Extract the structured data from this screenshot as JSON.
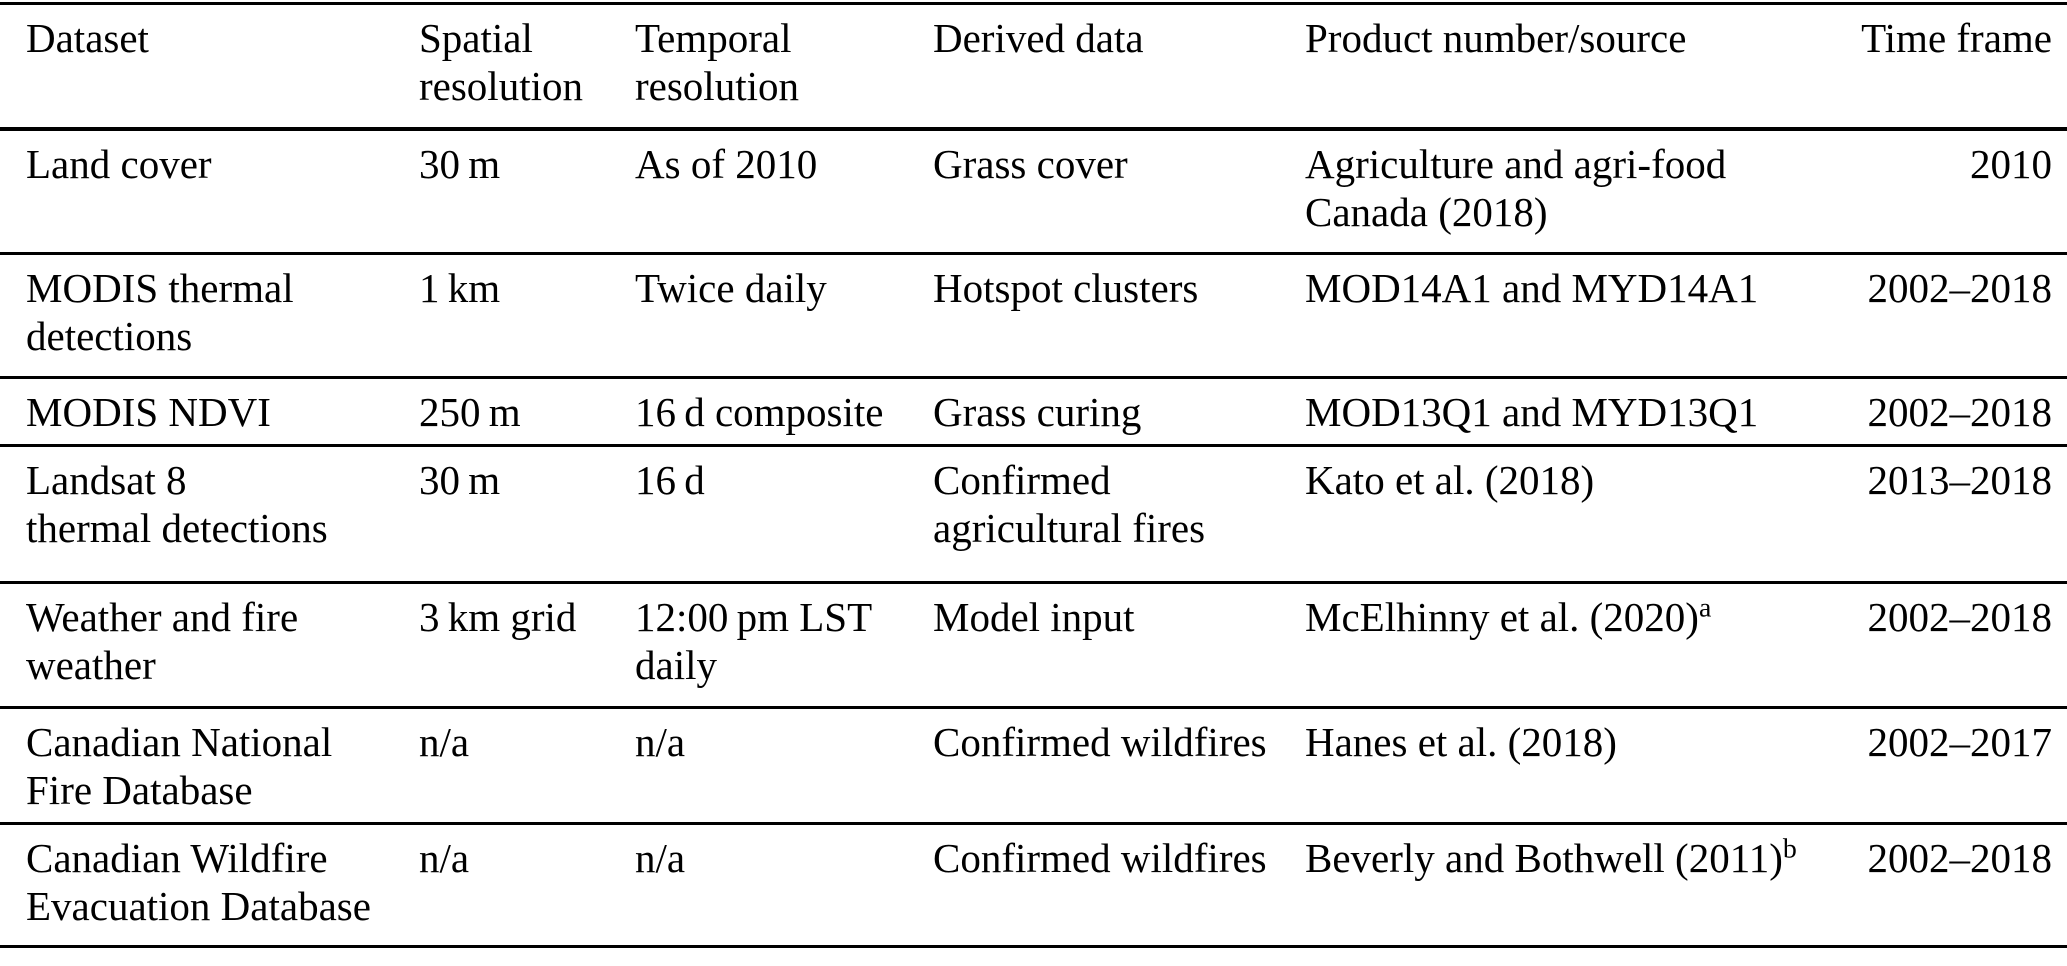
{
  "colors": {
    "text": "#000000",
    "background": "#ffffff",
    "rule": "#000000"
  },
  "table": {
    "header": {
      "dataset": [
        "Dataset"
      ],
      "spatial_resolution": [
        "Spatial",
        "resolution"
      ],
      "temporal_resolution": [
        "Temporal",
        "resolution"
      ],
      "derived_data": [
        "Derived data"
      ],
      "product_source": [
        "Product number/source"
      ],
      "time_frame": [
        "Time frame"
      ]
    },
    "rows": [
      {
        "dataset": [
          "Land cover"
        ],
        "spatial_resolution": [
          "30 m"
        ],
        "temporal_resolution": [
          "As of 2010"
        ],
        "derived_data": [
          "Grass cover"
        ],
        "product_source": [
          "Agriculture and agri-food",
          "Canada (2018)"
        ],
        "time_frame": [
          "2010"
        ]
      },
      {
        "dataset": [
          "MODIS thermal",
          "detections"
        ],
        "spatial_resolution": [
          "1 km"
        ],
        "temporal_resolution": [
          "Twice daily"
        ],
        "derived_data": [
          "Hotspot clusters"
        ],
        "product_source": [
          "MOD14A1 and MYD14A1"
        ],
        "time_frame": [
          "2002–2018"
        ]
      },
      {
        "dataset": [
          "MODIS NDVI"
        ],
        "spatial_resolution": [
          "250 m"
        ],
        "temporal_resolution": [
          "16 d composite"
        ],
        "derived_data": [
          "Grass curing"
        ],
        "product_source": [
          "MOD13Q1 and MYD13Q1"
        ],
        "time_frame": [
          "2002–2018"
        ]
      },
      {
        "dataset": [
          "Landsat 8",
          "thermal detections"
        ],
        "spatial_resolution": [
          "30 m"
        ],
        "temporal_resolution": [
          "16 d"
        ],
        "derived_data": [
          "Confirmed",
          "agricultural fires"
        ],
        "product_source": [
          "Kato et al. (2018)"
        ],
        "time_frame": [
          "2013–2018"
        ]
      },
      {
        "dataset": [
          "Weather and fire",
          "weather"
        ],
        "spatial_resolution": [
          "3 km grid"
        ],
        "temporal_resolution": [
          "12:00 pm LST",
          "daily"
        ],
        "derived_data": [
          "Model input"
        ],
        "product_source": [
          "McElhinny et al. (2020)^a"
        ],
        "time_frame": [
          "2002–2018"
        ]
      },
      {
        "dataset": [
          "Canadian National",
          "Fire Database"
        ],
        "spatial_resolution": [
          "n/a"
        ],
        "temporal_resolution": [
          "n/a"
        ],
        "derived_data": [
          "Confirmed wildfires"
        ],
        "product_source": [
          "Hanes et al. (2018)"
        ],
        "time_frame": [
          "2002–2017"
        ]
      },
      {
        "dataset": [
          "Canadian Wildfire",
          "Evacuation Database"
        ],
        "spatial_resolution": [
          "n/a"
        ],
        "temporal_resolution": [
          "n/a"
        ],
        "derived_data": [
          "Confirmed wildfires"
        ],
        "product_source": [
          "Beverly and Bothwell (2011)^b"
        ],
        "time_frame": [
          "2002–2018"
        ]
      }
    ]
  }
}
